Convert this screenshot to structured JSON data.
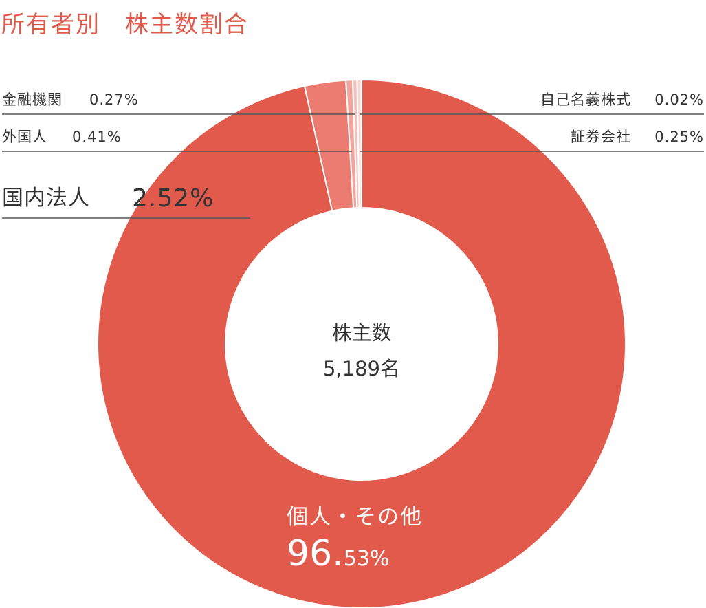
{
  "title": "所有者別　株主数割合",
  "chart_data": {
    "type": "donut",
    "title": "所有者別　株主数割合",
    "center": {
      "label": "株主数",
      "value": "5,189名"
    },
    "slices": [
      {
        "name": "個人・その他",
        "value": 96.53,
        "label_int": "96.",
        "label_frac": "53%",
        "color": "#e25a4b"
      },
      {
        "name": "国内法人",
        "value": 2.52,
        "label": "2.52%",
        "color": "#ec7b71"
      },
      {
        "name": "外国人",
        "value": 0.41,
        "label": "0.41%",
        "color": "#f2a49d"
      },
      {
        "name": "金融機関",
        "value": 0.27,
        "label": "0.27%",
        "color": "#f5bfba"
      },
      {
        "name": "証券会社",
        "value": 0.25,
        "label": "0.25%",
        "color": "#f8d3cf"
      },
      {
        "name": "自己名義株式",
        "value": 0.02,
        "label": "0.02%",
        "color": "#fbe6e3"
      }
    ]
  }
}
